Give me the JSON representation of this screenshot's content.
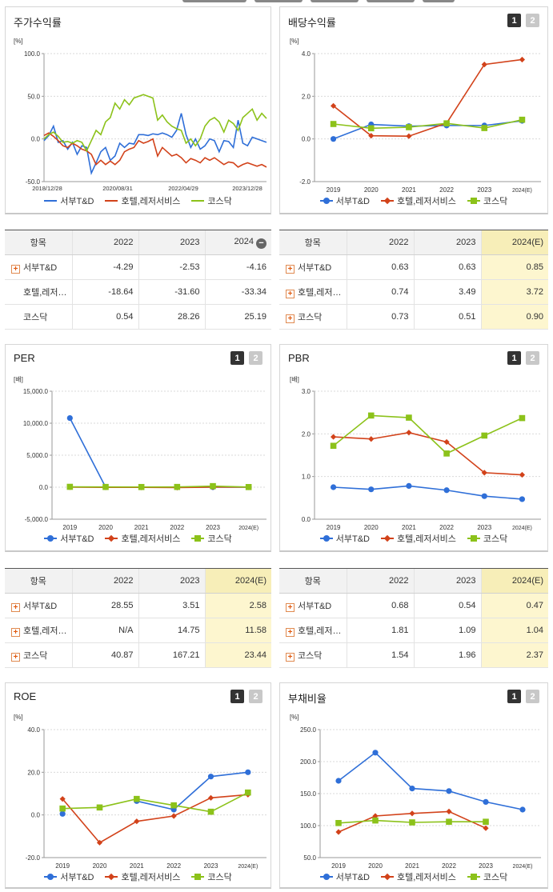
{
  "colors": {
    "s1": "#2f6fd8",
    "s2": "#d2421a",
    "s3": "#8cc21a"
  },
  "series_names": [
    "서부T&D",
    "호텔,레저서비스",
    "코스닥"
  ],
  "page_buttons": [
    "1",
    "2"
  ],
  "panels": {
    "stock": {
      "title": "주가수익률",
      "unit": "[%]",
      "chart_data": {
        "type": "line",
        "title": "주가수익률",
        "ylim": [
          -50,
          100
        ],
        "y_ticks": [
          "100.0",
          "50.0",
          "0.0",
          "-50.0"
        ],
        "x_ticks": [
          "2018/12/28",
          "2020/08/31",
          "2022/04/29",
          "2023/12/28"
        ],
        "series": [
          {
            "name": "서부T&D",
            "values": [
              -2,
              4,
              15,
              -4,
              -2,
              -12,
              -4,
              -18,
              -8,
              -10,
              -40,
              -28,
              -15,
              -10,
              -25,
              -20,
              -5,
              -10,
              -5,
              -6,
              5,
              5,
              4,
              6,
              5,
              7,
              5,
              2,
              10,
              30,
              5,
              -10,
              0,
              -12,
              -8,
              0,
              -2,
              -15,
              -2,
              -3,
              -10,
              22,
              -5,
              -8,
              2,
              0,
              -2,
              -4
            ]
          },
          {
            "name": "호텔,레저서비스",
            "values": [
              4,
              7,
              3,
              -2,
              -8,
              -10,
              -5,
              -8,
              -12,
              -14,
              -18,
              -30,
              -25,
              -30,
              -26,
              -30,
              -25,
              -15,
              -12,
              -10,
              -2,
              -5,
              -3,
              0,
              -20,
              -10,
              -15,
              -20,
              -18,
              -22,
              -28,
              -23,
              -25,
              -28,
              -22,
              -25,
              -22,
              -26,
              -30,
              -27,
              -28,
              -33,
              -30,
              -28,
              -30,
              -32,
              -30,
              -33
            ]
          },
          {
            "name": "코스닥",
            "values": [
              0,
              5,
              8,
              3,
              -4,
              -3,
              -5,
              -2,
              -4,
              -14,
              -2,
              10,
              5,
              20,
              25,
              42,
              35,
              46,
              40,
              48,
              50,
              52,
              50,
              48,
              22,
              28,
              20,
              15,
              12,
              10,
              -5,
              0,
              -8,
              0,
              15,
              22,
              25,
              20,
              8,
              22,
              18,
              10,
              25,
              30,
              35,
              22,
              30,
              24
            ]
          }
        ]
      },
      "legend": [
        "서부T&D",
        "호텔,레저서비스",
        "코스닥"
      ]
    },
    "dividend": {
      "title": "배당수익률",
      "unit": "[%]",
      "chart_data": {
        "type": "line",
        "title": "배당수익률",
        "ylim": [
          -2,
          4
        ],
        "y_ticks": [
          "4.0",
          "2.0",
          "0.0",
          "-2.0"
        ],
        "categories": [
          "2019",
          "2020",
          "2021",
          "2022",
          "2023",
          "2024(E)"
        ],
        "series": [
          {
            "name": "서부T&D",
            "values": [
              0.0,
              0.68,
              0.6,
              0.63,
              0.63,
              0.85
            ]
          },
          {
            "name": "호텔,레저서비스",
            "values": [
              1.55,
              0.15,
              0.13,
              0.74,
              3.49,
              3.72
            ]
          },
          {
            "name": "코스닥",
            "values": [
              0.7,
              0.5,
              0.55,
              0.73,
              0.51,
              0.9
            ]
          }
        ]
      },
      "legend": [
        "서부T&D",
        "호텔,레저서비스",
        "코스닥"
      ]
    },
    "per": {
      "title": "PER",
      "unit": "[배]",
      "chart_data": {
        "type": "line",
        "title": "PER",
        "ylim": [
          -5000,
          15000
        ],
        "y_ticks": [
          "15,000.0",
          "10,000.0",
          "5,000.0",
          "0.0",
          "-5,000.0"
        ],
        "categories": [
          "2019",
          "2020",
          "2021",
          "2022",
          "2023",
          "2024(E)"
        ],
        "series": [
          {
            "name": "서부T&D",
            "values": [
              10800,
              0,
              0,
              28.55,
              3.51,
              2.58
            ]
          },
          {
            "name": "호텔,레저서비스",
            "values": [
              0,
              -20,
              -30,
              -60,
              14.75,
              11.58
            ]
          },
          {
            "name": "코스닥",
            "values": [
              60,
              40,
              30,
              40.87,
              167.21,
              23.44
            ]
          }
        ]
      },
      "legend": [
        "서부T&D",
        "호텔,레저서비스",
        "코스닥"
      ]
    },
    "pbr": {
      "title": "PBR",
      "unit": "[배]",
      "chart_data": {
        "type": "line",
        "title": "PBR",
        "ylim": [
          0,
          3
        ],
        "y_ticks": [
          "3.0",
          "2.0",
          "1.0",
          "0.0"
        ],
        "categories": [
          "2019",
          "2020",
          "2021",
          "2022",
          "2023",
          "2024(E)"
        ],
        "series": [
          {
            "name": "서부T&D",
            "values": [
              0.75,
              0.7,
              0.78,
              0.68,
              0.54,
              0.47
            ]
          },
          {
            "name": "호텔,레저서비스",
            "values": [
              1.93,
              1.88,
              2.03,
              1.81,
              1.09,
              1.04
            ]
          },
          {
            "name": "코스닥",
            "values": [
              1.72,
              2.43,
              2.38,
              1.54,
              1.96,
              2.37
            ]
          }
        ]
      },
      "legend": [
        "서부T&D",
        "호텔,레저서비스",
        "코스닥"
      ]
    },
    "roe": {
      "title": "ROE",
      "unit": "[%]",
      "chart_data": {
        "type": "line",
        "title": "ROE",
        "ylim": [
          -20,
          40
        ],
        "y_ticks": [
          "40.0",
          "20.0",
          "0.0",
          "-20.0"
        ],
        "categories": [
          "2019",
          "2020",
          "2021",
          "2022",
          "2023",
          "2024(E)"
        ],
        "series": [
          {
            "name": "서부T&D",
            "values": [
              0.5,
              null,
              6.5,
              2.5,
              18,
              20
            ]
          },
          {
            "name": "호텔,레저서비스",
            "values": [
              7.5,
              -13,
              -3,
              -0.5,
              8,
              9.5
            ]
          },
          {
            "name": "코스닥",
            "values": [
              3,
              3.5,
              7.5,
              4.5,
              1.5,
              10.5
            ]
          }
        ]
      },
      "legend": [
        "서부T&D",
        "호텔,레저서비스",
        "코스닥"
      ]
    },
    "debt": {
      "title": "부채비율",
      "unit": "[%]",
      "chart_data": {
        "type": "line",
        "title": "부채비율",
        "ylim": [
          50,
          250
        ],
        "y_ticks": [
          "250.0",
          "200.0",
          "150.0",
          "100.0",
          "50.0"
        ],
        "categories": [
          "2019",
          "2020",
          "2021",
          "2022",
          "2023",
          "2024(E)"
        ],
        "series": [
          {
            "name": "서부T&D",
            "values": [
              170,
              214,
              158,
              154,
              137,
              125
            ]
          },
          {
            "name": "호텔,레저서비스",
            "values": [
              90,
              115,
              119,
              122,
              96,
              null
            ]
          },
          {
            "name": "코스닥",
            "values": [
              104,
              108,
              105,
              106,
              106,
              null
            ]
          }
        ]
      },
      "legend": [
        "서부T&D",
        "호텔,레저서비스",
        "코스닥"
      ]
    }
  },
  "tables": {
    "stock": {
      "headers": [
        "항목",
        "2022",
        "2023",
        "2024"
      ],
      "rows": [
        {
          "name": "서부T&D",
          "expand": true,
          "values": [
            "-4.29",
            "-2.53",
            "-4.16"
          ]
        },
        {
          "name": "호텔,레저서비스",
          "expand": false,
          "values": [
            "-18.64",
            "-31.60",
            "-33.34"
          ]
        },
        {
          "name": "코스닥",
          "expand": false,
          "values": [
            "0.54",
            "28.26",
            "25.19"
          ]
        }
      ]
    },
    "dividend": {
      "headers": [
        "항목",
        "2022",
        "2023",
        "2024(E)"
      ],
      "rows": [
        {
          "name": "서부T&D",
          "expand": true,
          "values": [
            "0.63",
            "0.63",
            "0.85"
          ]
        },
        {
          "name": "호텔,레저서비스",
          "expand": true,
          "values": [
            "0.74",
            "3.49",
            "3.72"
          ]
        },
        {
          "name": "코스닥",
          "expand": true,
          "values": [
            "0.73",
            "0.51",
            "0.90"
          ]
        }
      ]
    },
    "per": {
      "headers": [
        "항목",
        "2022",
        "2023",
        "2024(E)"
      ],
      "rows": [
        {
          "name": "서부T&D",
          "expand": true,
          "values": [
            "28.55",
            "3.51",
            "2.58"
          ]
        },
        {
          "name": "호텔,레저서비스",
          "expand": true,
          "values": [
            "N/A",
            "14.75",
            "11.58"
          ]
        },
        {
          "name": "코스닥",
          "expand": true,
          "values": [
            "40.87",
            "167.21",
            "23.44"
          ]
        }
      ]
    },
    "pbr": {
      "headers": [
        "항목",
        "2022",
        "2023",
        "2024(E)"
      ],
      "rows": [
        {
          "name": "서부T&D",
          "expand": true,
          "values": [
            "0.68",
            "0.54",
            "0.47"
          ]
        },
        {
          "name": "호텔,레저서비스",
          "expand": true,
          "values": [
            "1.81",
            "1.09",
            "1.04"
          ]
        },
        {
          "name": "코스닥",
          "expand": true,
          "values": [
            "1.54",
            "1.96",
            "2.37"
          ]
        }
      ]
    }
  }
}
